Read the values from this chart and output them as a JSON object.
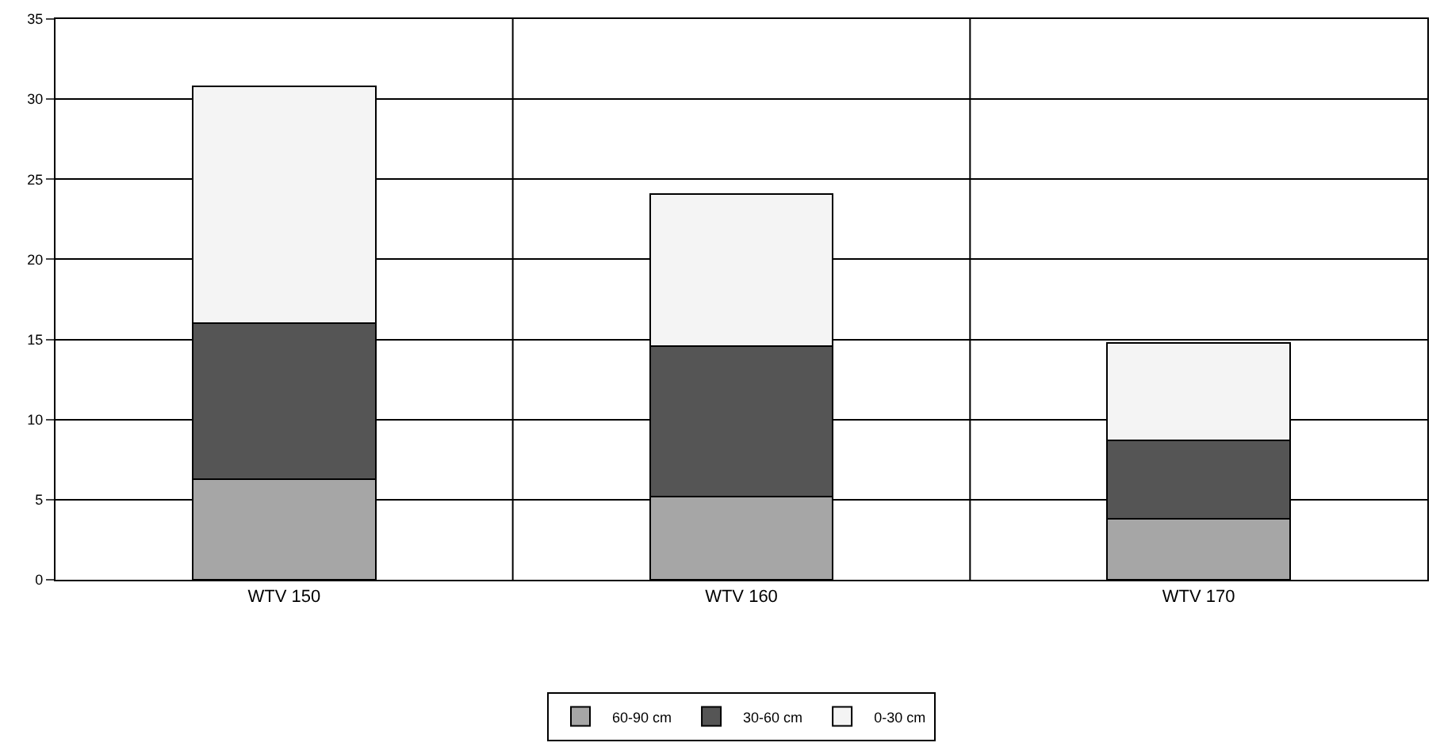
{
  "chart_data": {
    "type": "bar",
    "stacked": true,
    "categories": [
      "WTV 150",
      "WTV 160",
      "WTV 170"
    ],
    "series": [
      {
        "name": "60-90 cm",
        "color": "#a6a6a6",
        "values": [
          6.3,
          5.2,
          3.8
        ]
      },
      {
        "name": "30-60 cm",
        "color": "#555555",
        "values": [
          9.7,
          9.4,
          4.9
        ]
      },
      {
        "name": "0-30 cm",
        "color": "#f4f4f4",
        "values": [
          14.8,
          9.5,
          6.1
        ]
      }
    ],
    "ylim": [
      0,
      35
    ],
    "yticks": [
      0,
      5,
      10,
      15,
      20,
      25,
      30,
      35
    ],
    "grid": true,
    "legend": "bottom"
  }
}
